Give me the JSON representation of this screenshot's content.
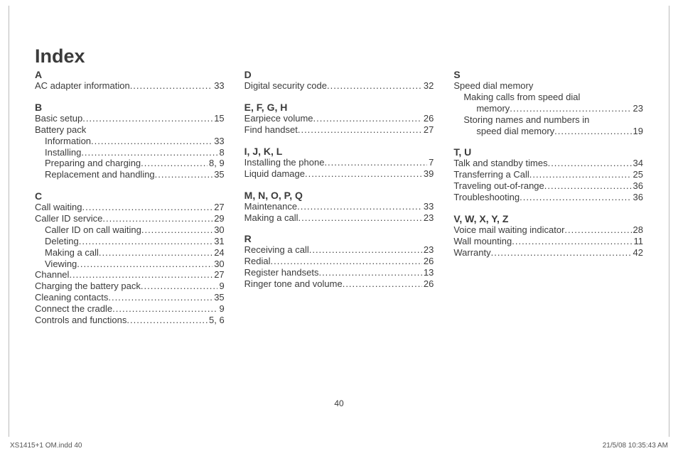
{
  "title": "Index",
  "page_number": "40",
  "footer_left": "XS1415+1 OM.indd   40",
  "footer_right": "21/5/08   10:35:43 AM",
  "columns": [
    [
      {
        "letter": "A",
        "entries": [
          {
            "label": "AC adapter information",
            "page": "33",
            "indent": 0
          }
        ]
      },
      {
        "letter": "B",
        "entries": [
          {
            "label": "Basic setup",
            "page": "15",
            "indent": 0
          },
          {
            "label": "Battery pack",
            "page": "",
            "indent": 0,
            "noleader": true
          },
          {
            "label": "Information",
            "page": "33",
            "indent": 1
          },
          {
            "label": "Installing",
            "page": "8",
            "indent": 1
          },
          {
            "label": "Preparing and charging",
            "page": "8, 9",
            "indent": 1
          },
          {
            "label": "Replacement and handling",
            "page": "35",
            "indent": 1
          }
        ]
      },
      {
        "letter": "C",
        "entries": [
          {
            "label": "Call waiting",
            "page": "27",
            "indent": 0
          },
          {
            "label": "Caller ID service",
            "page": "29",
            "indent": 0
          },
          {
            "label": "Caller ID on call waiting",
            "page": "30",
            "indent": 1
          },
          {
            "label": "Deleting",
            "page": "31",
            "indent": 1
          },
          {
            "label": "Making a call",
            "page": "24",
            "indent": 1
          },
          {
            "label": "Viewing",
            "page": "30",
            "indent": 1
          },
          {
            "label": "Channel",
            "page": "27",
            "indent": 0
          },
          {
            "label": "Charging the battery pack",
            "page": "9",
            "indent": 0
          },
          {
            "label": "Cleaning contacts",
            "page": "35",
            "indent": 0
          },
          {
            "label": "Connect the cradle",
            "page": "9",
            "indent": 0
          },
          {
            "label": "Controls and functions",
            "page": "5, 6",
            "indent": 0
          }
        ]
      }
    ],
    [
      {
        "letter": "D",
        "entries": [
          {
            "label": "Digital security code",
            "page": "32",
            "indent": 0
          }
        ]
      },
      {
        "letter": "E, F, G, H",
        "entries": [
          {
            "label": "Earpiece volume",
            "page": "26",
            "indent": 0
          },
          {
            "label": "Find handset",
            "page": "27",
            "indent": 0
          }
        ]
      },
      {
        "letter": "I, J, K, L",
        "entries": [
          {
            "label": "Installing the phone",
            "page": "7",
            "indent": 0
          },
          {
            "label": "Liquid damage",
            "page": "39",
            "indent": 0
          }
        ]
      },
      {
        "letter": "M, N, O, P, Q",
        "entries": [
          {
            "label": "Maintenance",
            "page": "33",
            "indent": 0
          },
          {
            "label": "Making a call",
            "page": "23",
            "indent": 0
          }
        ]
      },
      {
        "letter": "R",
        "entries": [
          {
            "label": "Receiving a call",
            "page": "23",
            "indent": 0
          },
          {
            "label": "Redial",
            "page": "26",
            "indent": 0
          },
          {
            "label": "Register handsets",
            "page": "13",
            "indent": 0
          },
          {
            "label": "Ringer tone and volume",
            "page": "26",
            "indent": 0
          }
        ]
      }
    ],
    [
      {
        "letter": "S",
        "entries": [
          {
            "label": "Speed dial memory",
            "page": "",
            "indent": 0,
            "noleader": true
          },
          {
            "label": "Making calls from speed dial",
            "page": "",
            "indent": 1,
            "noleader": true
          },
          {
            "label": "memory",
            "page": "23",
            "indent": 2
          },
          {
            "label": "Storing names and numbers in",
            "page": "",
            "indent": 1,
            "noleader": true
          },
          {
            "label": "speed dial memory",
            "page": "19",
            "indent": 2
          }
        ]
      },
      {
        "letter": "T, U",
        "entries": [
          {
            "label": "Talk and standby times",
            "page": "34",
            "indent": 0
          },
          {
            "label": "Transferring a Call",
            "page": "25",
            "indent": 0
          },
          {
            "label": "Traveling out-of-range",
            "page": "36",
            "indent": 0
          },
          {
            "label": "Troubleshooting",
            "page": "36",
            "indent": 0
          }
        ]
      },
      {
        "letter": "V, W, X, Y, Z",
        "entries": [
          {
            "label": "Voice mail waiting indicator",
            "page": "28",
            "indent": 0
          },
          {
            "label": "Wall mounting",
            "page": "11",
            "indent": 0
          },
          {
            "label": "Warranty",
            "page": "42",
            "indent": 0
          }
        ]
      }
    ]
  ]
}
